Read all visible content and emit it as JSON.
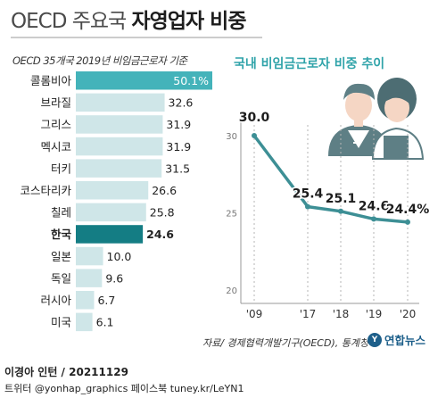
{
  "header": {
    "title_light": "OECD 주요국",
    "title_bold": "자영업자 비중"
  },
  "colors": {
    "bar": "#cfe6e8",
    "bar_top": "#44b3ba",
    "bar_highlight": "#147d84",
    "line": "#3d8f95",
    "title_right": "#2fa3a9",
    "illustration": "#5e7f85"
  },
  "chart_data": [
    {
      "type": "bar",
      "orientation": "horizontal",
      "title": "OECD 35개국 2019년 비임금근로자 기준",
      "categories": [
        "콜롬비아",
        "브라질",
        "그리스",
        "멕시코",
        "터키",
        "코스타리카",
        "칠레",
        "한국",
        "일본",
        "독일",
        "러시아",
        "미국"
      ],
      "values": [
        50.1,
        32.6,
        31.9,
        31.9,
        31.5,
        26.6,
        25.8,
        24.6,
        10.0,
        9.6,
        6.7,
        6.1
      ],
      "value_labels": [
        "50.1%",
        "32.6",
        "31.9",
        "31.9",
        "31.5",
        "26.6",
        "25.8",
        "24.6",
        "10.0",
        "9.6",
        "6.7",
        "6.1"
      ],
      "highlight": "한국",
      "xlim": [
        0,
        50.1
      ]
    },
    {
      "type": "line",
      "title": "국내 비임금근로자 비중 추이",
      "x": [
        "'09",
        "'17",
        "'18",
        "'19",
        "'20"
      ],
      "y": [
        30.0,
        25.4,
        25.1,
        24.6,
        24.4
      ],
      "value_labels": [
        "30.0",
        "25.4",
        "25.1",
        "24.6",
        "24.4%"
      ],
      "yticks": [
        30,
        25,
        20
      ],
      "ylim": [
        20,
        30
      ],
      "grid": "vertical"
    }
  ],
  "source": "자료/ 경제협력개발기구(OECD), 통계청",
  "footer": {
    "byline": "이경아 인턴 / 20211129",
    "social": "트위터 @yonhap_graphics  페이스북 tuney.kr/LeYN1"
  },
  "logo": {
    "mark": "Y",
    "text": "연합뉴스"
  }
}
